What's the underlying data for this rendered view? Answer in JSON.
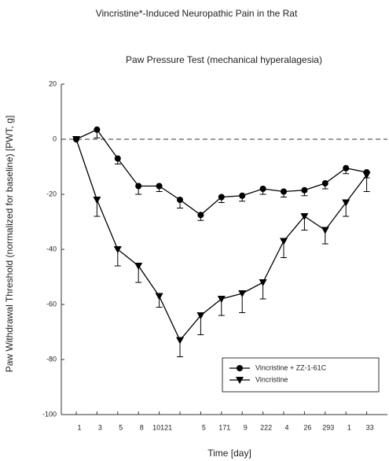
{
  "chart_data": {
    "type": "line",
    "title": "Vincristine*-Induced Neuropathic Pain in the Rat",
    "subtitle": "Paw Pressure Test (mechanical hyperalagesia)",
    "y_label": "Paw Withdrawal Threshold  (normalized for baseline) [PWT, g]",
    "x_label": "Time [day]",
    "categories": [
      "1",
      "3",
      "5",
      "8",
      "10121",
      null,
      "5",
      "171",
      "9",
      "222",
      "4",
      "26",
      "293",
      "1",
      "33"
    ],
    "series": [
      {
        "name": "Vincristine + ZZ-1-61C",
        "color": "#000000",
        "marker": "circle",
        "values": [
          0,
          3.5,
          -7,
          -17,
          -17,
          -22,
          -27.5,
          -21,
          -20.5,
          -18,
          -19,
          -18.5,
          -16,
          -10.5,
          -12
        ],
        "errors": [
          0,
          3,
          2,
          3,
          2,
          3,
          2,
          2,
          2,
          2,
          2,
          2,
          2,
          2,
          2
        ]
      },
      {
        "name": "Vincristine",
        "color": "#000000",
        "marker": "triangle-down",
        "values": [
          0,
          -22,
          -40,
          -46,
          -57,
          -73,
          -64,
          -58,
          -56,
          -52,
          -37,
          -28,
          -33,
          -23,
          -13
        ],
        "errors": [
          0,
          6,
          6,
          6,
          4,
          6,
          7,
          6,
          7,
          6,
          6,
          5,
          5,
          5,
          6
        ]
      }
    ],
    "ylim": [
      -100,
      20
    ],
    "yticks": [
      -100,
      -80,
      -60,
      -40,
      -20,
      0,
      20
    ],
    "reference_line": 0,
    "legend": "lower right"
  }
}
